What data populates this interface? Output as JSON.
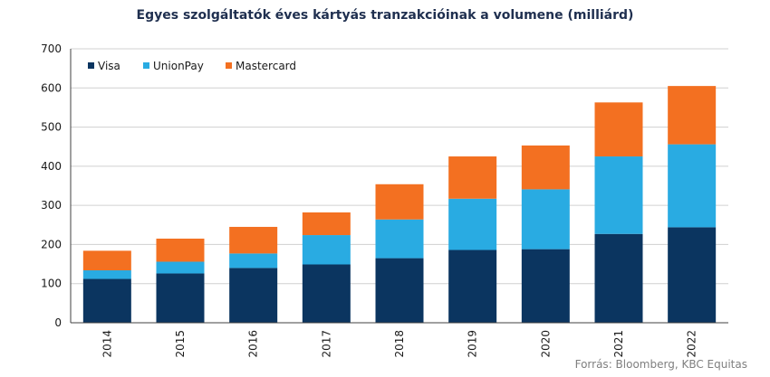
{
  "colors": {
    "visa": "#0b3560",
    "unionpay": "#29abe2",
    "mastercard": "#f37021",
    "grid": "#d0d0d0",
    "axis": "#404040"
  },
  "source": "Forrás: Bloomberg,  KBC Equitas",
  "chart_data": {
    "type": "bar",
    "stacked": true,
    "title": "Egyes szolgáltatók éves kártyás tranzakcióinak a volumene  (milliárd)",
    "xlabel": "",
    "ylabel": "",
    "ylim": [
      0,
      700
    ],
    "yticks": [
      0,
      100,
      200,
      300,
      400,
      500,
      600,
      700
    ],
    "grid": true,
    "legend_position": "top-left",
    "categories": [
      "2014",
      "2015",
      "2016",
      "2017",
      "2018",
      "2019",
      "2020",
      "2021",
      "2022"
    ],
    "series": [
      {
        "name": "Visa",
        "color": "#0b3560",
        "values": [
          112,
          126,
          140,
          149,
          165,
          186,
          188,
          227,
          244
        ]
      },
      {
        "name": "UnionPay",
        "color": "#29abe2",
        "values": [
          22,
          30,
          37,
          75,
          99,
          131,
          153,
          198,
          212
        ]
      },
      {
        "name": "Mastercard",
        "color": "#f37021",
        "values": [
          50,
          59,
          68,
          58,
          90,
          108,
          112,
          138,
          149
        ]
      }
    ]
  }
}
